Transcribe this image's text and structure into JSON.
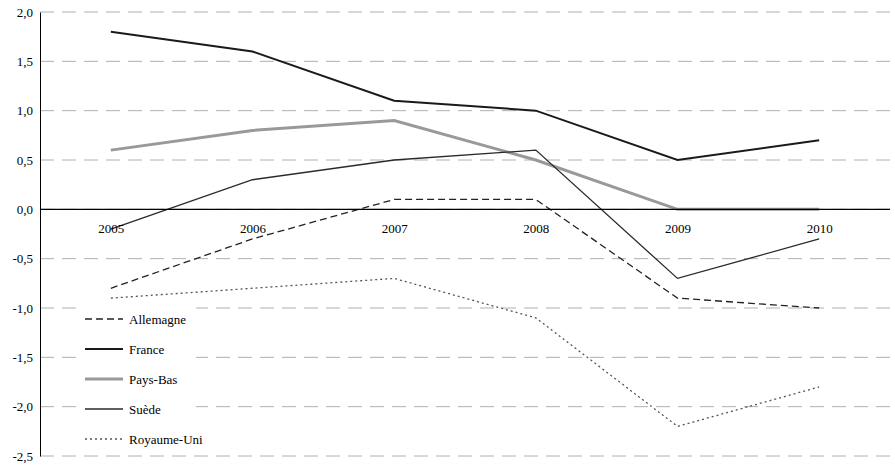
{
  "chart_data": {
    "type": "line",
    "categories": [
      "2005",
      "2006",
      "2007",
      "2008",
      "2009",
      "2010"
    ],
    "series": [
      {
        "name": "Allemagne",
        "color": "#222222",
        "line_style": "dashed",
        "values": [
          -0.8,
          -0.3,
          0.1,
          0.1,
          -0.9,
          -1.0
        ]
      },
      {
        "name": "France",
        "color": "#1a1a1a",
        "line_style": "solid",
        "values": [
          1.8,
          1.6,
          1.1,
          1.0,
          0.5,
          0.7
        ]
      },
      {
        "name": "Pays-Bas",
        "color": "#999999",
        "line_style": "solid",
        "values": [
          0.6,
          0.8,
          0.9,
          0.5,
          0.0,
          0.0
        ]
      },
      {
        "name": "Suède",
        "color": "#2a2a2a",
        "line_style": "solid",
        "values": [
          -0.2,
          0.3,
          0.5,
          0.6,
          -0.7,
          -0.3
        ]
      },
      {
        "name": "Royaume-Uni",
        "color": "#555555",
        "line_style": "dotted",
        "values": [
          -0.9,
          -0.8,
          -0.7,
          -1.1,
          -2.2,
          -1.8
        ]
      }
    ],
    "ylim": [
      -2.5,
      2.0
    ],
    "yticks": [
      {
        "value": -2.5,
        "label": "-2,5"
      },
      {
        "value": -2.0,
        "label": "-2,0"
      },
      {
        "value": -1.5,
        "label": "-1,5"
      },
      {
        "value": -1.0,
        "label": "-1,0"
      },
      {
        "value": -0.5,
        "label": "-0,5"
      },
      {
        "value": 0.0,
        "label": "0,0"
      },
      {
        "value": 0.5,
        "label": "0,5"
      },
      {
        "value": 1.0,
        "label": "1,0"
      },
      {
        "value": 1.5,
        "label": "1,5"
      },
      {
        "value": 2.0,
        "label": "2,0"
      }
    ],
    "grid": true,
    "legend": "lower left"
  }
}
